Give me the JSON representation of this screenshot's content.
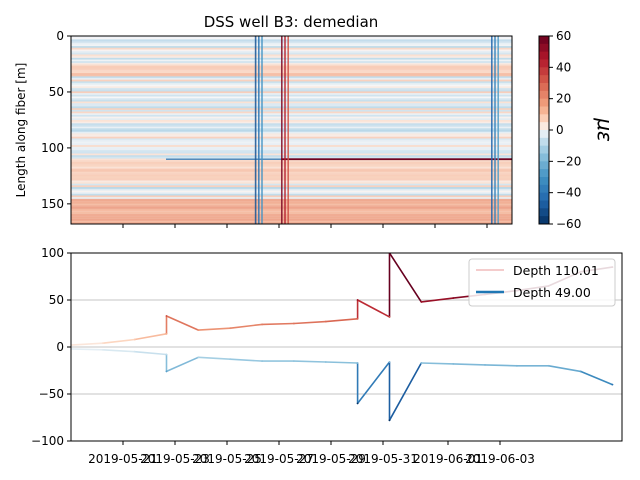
{
  "figure": {
    "title": "DSS well B3: demedian"
  },
  "chart_data": [
    {
      "type": "heatmap",
      "title": "DSS well B3: demedian",
      "xlabel": "",
      "ylabel": "Length along fiber [m]",
      "yticks": [
        "0",
        "50",
        "100",
        "150"
      ],
      "ylim": [
        168,
        0
      ],
      "colorbar": {
        "label": "με",
        "ticks": [
          "60",
          "40",
          "20",
          "0",
          "−20",
          "−40",
          "−60"
        ],
        "range": [
          -60,
          60
        ],
        "colormap": "RdBu_r"
      },
      "features": {
        "warm_band_depth_m": [
          145,
          168
        ],
        "strong_positive_line_depth_m": 110,
        "event_dates": [
          "2019-05-26",
          "2019-05-27",
          "2019-06-04"
        ]
      }
    },
    {
      "type": "line",
      "xlabel": "",
      "ylabel": "",
      "xlim": [
        "2019-05-19",
        "2019-06-05"
      ],
      "ylim": [
        -100,
        100
      ],
      "yticks": [
        "100",
        "50",
        "0",
        "−50",
        "−100"
      ],
      "xticks": [
        "2019-05-21",
        "2019-05-23",
        "2019-05-25",
        "2019-05-27",
        "2019-05-29",
        "2019-05-31",
        "2019-06-01",
        "2019-06-03"
      ],
      "grid": "horizontal",
      "legend_position": "top-right",
      "series": [
        {
          "name": "Depth 110.01",
          "color": "#c0392b",
          "x": [
            "2019-05-19",
            "2019-05-20",
            "2019-05-21",
            "2019-05-22",
            "2019-05-22",
            "2019-05-23",
            "2019-05-24",
            "2019-05-25",
            "2019-05-26",
            "2019-05-27",
            "2019-05-28",
            "2019-05-28",
            "2019-05-29",
            "2019-05-29",
            "2019-05-30",
            "2019-05-31",
            "2019-06-01",
            "2019-06-02",
            "2019-06-03",
            "2019-06-04",
            "2019-06-05"
          ],
          "values": [
            2,
            4,
            8,
            14,
            33,
            18,
            20,
            24,
            25,
            27,
            30,
            50,
            32,
            100,
            48,
            52,
            56,
            60,
            65,
            80,
            85
          ]
        },
        {
          "name": "Depth 49.00",
          "color": "#1f77b4",
          "x": [
            "2019-05-19",
            "2019-05-20",
            "2019-05-21",
            "2019-05-22",
            "2019-05-22",
            "2019-05-23",
            "2019-05-24",
            "2019-05-25",
            "2019-05-26",
            "2019-05-27",
            "2019-05-28",
            "2019-05-28",
            "2019-05-29",
            "2019-05-29",
            "2019-05-30",
            "2019-05-31",
            "2019-06-01",
            "2019-06-02",
            "2019-06-03",
            "2019-06-04",
            "2019-06-05"
          ],
          "values": [
            -2,
            -3,
            -5,
            -8,
            -26,
            -11,
            -13,
            -15,
            -15,
            -16,
            -17,
            -60,
            -16,
            -78,
            -17,
            -18,
            -19,
            -20,
            -20,
            -26,
            -40
          ]
        }
      ]
    }
  ]
}
